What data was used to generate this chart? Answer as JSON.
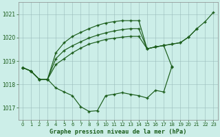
{
  "title": "Graphe pression niveau de la mer (hPa)",
  "background_color": "#cceee8",
  "grid_color": "#aacccc",
  "line_color": "#1a5c1a",
  "xlabel_color": "#1a5c1a",
  "ylim": [
    1016.5,
    1021.5
  ],
  "yticks": [
    1017,
    1018,
    1019,
    1020,
    1021
  ],
  "xlim": [
    -0.5,
    23.5
  ],
  "xticks": [
    0,
    1,
    2,
    3,
    4,
    5,
    6,
    7,
    8,
    9,
    10,
    11,
    12,
    13,
    14,
    15,
    16,
    17,
    18,
    19,
    20,
    21,
    22,
    23
  ],
  "lines": [
    [
      1018.72,
      1018.57,
      1018.22,
      1018.22,
      1018.85,
      1019.1,
      1019.35,
      1019.55,
      1019.72,
      1019.82,
      1019.92,
      1019.97,
      1020.02,
      1020.05,
      1020.05,
      1019.52,
      1019.6,
      1019.66,
      1018.75,
      null,
      null,
      null,
      null,
      null
    ],
    [
      1018.72,
      1018.57,
      1018.22,
      1018.22,
      1019.1,
      1019.45,
      1019.65,
      1019.82,
      1019.98,
      1020.1,
      1020.2,
      1020.28,
      1020.34,
      1020.38,
      1020.38,
      1019.52,
      1019.6,
      1019.66,
      1019.72,
      1019.78,
      1020.02,
      1020.38,
      null,
      null
    ],
    [
      1018.72,
      1018.57,
      1018.22,
      1018.22,
      1019.35,
      1019.78,
      1020.05,
      1020.22,
      1020.38,
      1020.52,
      1020.62,
      1020.68,
      1020.72,
      1020.72,
      1020.72,
      1019.52,
      1019.6,
      1019.66,
      1019.72,
      1019.78,
      1020.02,
      1020.38,
      1020.68,
      1021.08
    ],
    [
      1018.72,
      1018.57,
      1018.22,
      1018.22,
      1017.85,
      1017.68,
      1017.52,
      1017.05,
      1016.85,
      1016.88,
      1017.52,
      1017.58,
      1017.65,
      1017.58,
      1017.52,
      1017.42,
      1017.75,
      1017.68,
      1018.78,
      null,
      null,
      null,
      null,
      null
    ]
  ],
  "figsize": [
    3.2,
    2.0
  ],
  "dpi": 100
}
